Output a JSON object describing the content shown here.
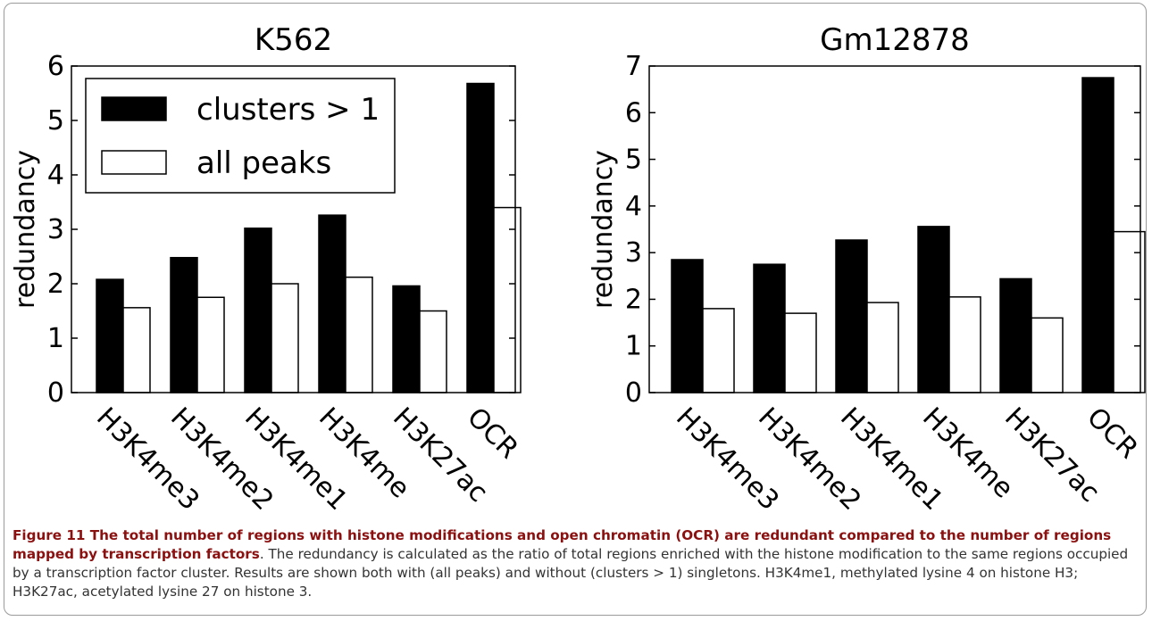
{
  "chart_data": [
    {
      "type": "bar",
      "title": "K562",
      "ylabel": "redundancy",
      "ylim": [
        0,
        6
      ],
      "yticks": [
        0,
        1,
        2,
        3,
        4,
        5,
        6
      ],
      "categories": [
        "H3K4me3",
        "H3K4me2",
        "H3K4me1",
        "H3K4me",
        "H3K27ac",
        "OCR"
      ],
      "series": [
        {
          "name": "clusters > 1",
          "color": "#000000",
          "values": [
            2.08,
            2.48,
            3.02,
            3.26,
            1.96,
            5.68
          ]
        },
        {
          "name": "all peaks",
          "color": "#ffffff",
          "values": [
            1.56,
            1.75,
            2.0,
            2.12,
            1.5,
            3.4
          ]
        }
      ],
      "legend": "top-left",
      "grid": false
    },
    {
      "type": "bar",
      "title": "Gm12878",
      "ylabel": "redundancy",
      "ylim": [
        0,
        7
      ],
      "yticks": [
        0,
        1,
        2,
        3,
        4,
        5,
        6,
        7
      ],
      "categories": [
        "H3K4me3",
        "H3K4me2",
        "H3K4me1",
        "H3K4me",
        "H3K27ac",
        "OCR"
      ],
      "series": [
        {
          "name": "clusters > 1",
          "color": "#000000",
          "values": [
            2.85,
            2.75,
            3.27,
            3.56,
            2.44,
            6.75
          ]
        },
        {
          "name": "all peaks",
          "color": "#ffffff",
          "values": [
            1.8,
            1.7,
            1.93,
            2.05,
            1.6,
            3.45
          ]
        }
      ],
      "grid": false
    }
  ],
  "caption": {
    "label": "Figure 11 The total number of regions with histone modifications and open chromatin (OCR) are redundant compared to the number of regions mapped by transcription factors",
    "text": ". The redundancy is calculated as the ratio of total regions enriched with the histone modification to the same regions occupied by a transcription factor cluster. Results are shown both with (all peaks) and without (clusters > 1) singletons. H3K4me1, methylated lysine 4 on histone H3; H3K27ac, acetylated lysine 27 on histone 3."
  }
}
